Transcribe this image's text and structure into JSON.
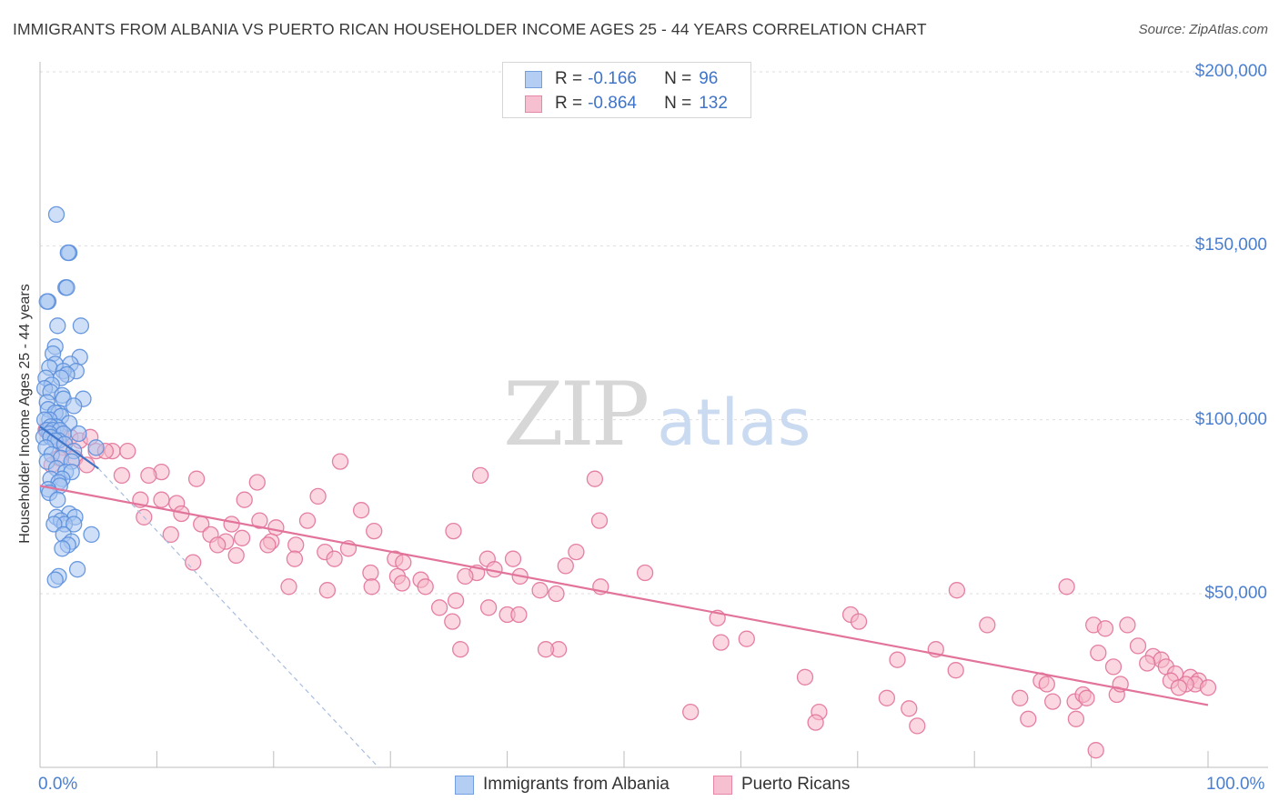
{
  "chart_data": {
    "type": "scatter",
    "title": "IMMIGRANTS FROM ALBANIA VS PUERTO RICAN HOUSEHOLDER INCOME AGES 25 - 44 YEARS CORRELATION CHART",
    "source_label": "Source:",
    "source_name": "ZipAtlas.com",
    "xlabel": "",
    "ylabel": "Householder Income Ages 25 - 44 years",
    "xlim": [
      0,
      100
    ],
    "ylim": [
      0,
      210000
    ],
    "x_tick_labels": [
      "0.0%",
      "100.0%"
    ],
    "y_ticks": [
      {
        "value": 50000,
        "label": "$50,000"
      },
      {
        "value": 100000,
        "label": "$100,000"
      },
      {
        "value": 150000,
        "label": "$150,000"
      },
      {
        "value": 200000,
        "label": "$200,000"
      }
    ],
    "grid": true,
    "watermark": {
      "zip": "ZIP",
      "atlas": "atlas"
    },
    "legend_position": "top-center",
    "series": [
      {
        "name": "Immigrants from Albania",
        "color": "#5b8fdc",
        "fill": "#a7c5f0",
        "R_label": "R =",
        "R": "-0.166",
        "N_label": "N =",
        "N": "96",
        "trend_solid": [
          [
            0,
            98000
          ],
          [
            5,
            86000
          ]
        ],
        "trend_dashed": [
          [
            5,
            86000
          ],
          [
            29,
            0
          ]
        ],
        "points": [
          [
            1.4,
            159000
          ],
          [
            2.5,
            148000
          ],
          [
            2.4,
            148000
          ],
          [
            2.2,
            138000
          ],
          [
            2.3,
            138000
          ],
          [
            0.7,
            134000
          ],
          [
            0.6,
            134000
          ],
          [
            1.5,
            127000
          ],
          [
            3.5,
            127000
          ],
          [
            1.3,
            121000
          ],
          [
            1.1,
            119000
          ],
          [
            3.4,
            118000
          ],
          [
            2.6,
            116000
          ],
          [
            1.3,
            116000
          ],
          [
            0.8,
            115000
          ],
          [
            3.1,
            114000
          ],
          [
            2.0,
            114000
          ],
          [
            2.3,
            113000
          ],
          [
            0.5,
            112000
          ],
          [
            1.8,
            112000
          ],
          [
            1.0,
            110000
          ],
          [
            0.4,
            109000
          ],
          [
            0.9,
            108000
          ],
          [
            1.9,
            107000
          ],
          [
            2.0,
            106000
          ],
          [
            3.7,
            106000
          ],
          [
            0.6,
            105000
          ],
          [
            2.9,
            104000
          ],
          [
            0.7,
            103000
          ],
          [
            1.6,
            102000
          ],
          [
            1.3,
            102000
          ],
          [
            1.8,
            101000
          ],
          [
            0.8,
            100000
          ],
          [
            0.4,
            100000
          ],
          [
            2.5,
            99000
          ],
          [
            1.4,
            98000
          ],
          [
            0.9,
            98000
          ],
          [
            0.6,
            97000
          ],
          [
            1.1,
            97000
          ],
          [
            1.7,
            97000
          ],
          [
            2.0,
            96000
          ],
          [
            3.3,
            96000
          ],
          [
            0.8,
            96000
          ],
          [
            0.3,
            95000
          ],
          [
            0.9,
            95000
          ],
          [
            1.6,
            94000
          ],
          [
            1.3,
            94000
          ],
          [
            2.1,
            93000
          ],
          [
            0.5,
            92000
          ],
          [
            4.8,
            92000
          ],
          [
            2.9,
            91000
          ],
          [
            1.0,
            90000
          ],
          [
            1.8,
            89000
          ],
          [
            2.7,
            88000
          ],
          [
            0.6,
            88000
          ],
          [
            1.4,
            86000
          ],
          [
            2.2,
            85000
          ],
          [
            2.7,
            85000
          ],
          [
            0.9,
            83000
          ],
          [
            1.9,
            83000
          ],
          [
            1.6,
            82000
          ],
          [
            1.7,
            81000
          ],
          [
            0.7,
            80000
          ],
          [
            0.8,
            79000
          ],
          [
            1.5,
            77000
          ],
          [
            2.5,
            73000
          ],
          [
            3.0,
            72000
          ],
          [
            1.4,
            72000
          ],
          [
            1.8,
            71000
          ],
          [
            2.1,
            70000
          ],
          [
            2.9,
            70000
          ],
          [
            1.2,
            70000
          ],
          [
            4.4,
            67000
          ],
          [
            2.0,
            67000
          ],
          [
            2.7,
            65000
          ],
          [
            2.4,
            64000
          ],
          [
            1.9,
            63000
          ],
          [
            3.2,
            57000
          ],
          [
            1.6,
            55000
          ],
          [
            1.3,
            54000
          ]
        ]
      },
      {
        "name": "Puerto Ricans",
        "color": "#e2739a",
        "fill": "#f5b6c9",
        "R_label": "R =",
        "R": "-0.864",
        "N_label": "N =",
        "N": "132",
        "trend_solid": [
          [
            0,
            81000
          ],
          [
            100,
            18000
          ]
        ],
        "points": [
          [
            0.5,
            97000
          ],
          [
            1.2,
            95000
          ],
          [
            1.8,
            96000
          ],
          [
            2.0,
            92000
          ],
          [
            2.6,
            95000
          ],
          [
            3.4,
            94000
          ],
          [
            4.3,
            95000
          ],
          [
            4.8,
            91000
          ],
          [
            6.2,
            91000
          ],
          [
            7.5,
            91000
          ],
          [
            1.6,
            89000
          ],
          [
            3.0,
            89000
          ],
          [
            5.6,
            91000
          ],
          [
            1.0,
            87000
          ],
          [
            4.0,
            87000
          ],
          [
            10.4,
            85000
          ],
          [
            25.7,
            88000
          ],
          [
            7.0,
            84000
          ],
          [
            9.3,
            84000
          ],
          [
            18.6,
            82000
          ],
          [
            37.7,
            84000
          ],
          [
            47.5,
            83000
          ],
          [
            13.4,
            83000
          ],
          [
            8.6,
            77000
          ],
          [
            10.4,
            77000
          ],
          [
            11.7,
            76000
          ],
          [
            17.5,
            77000
          ],
          [
            23.8,
            78000
          ],
          [
            27.5,
            74000
          ],
          [
            12.1,
            73000
          ],
          [
            8.9,
            72000
          ],
          [
            18.8,
            71000
          ],
          [
            13.8,
            70000
          ],
          [
            16.4,
            70000
          ],
          [
            22.9,
            71000
          ],
          [
            20.2,
            69000
          ],
          [
            14.6,
            67000
          ],
          [
            15.9,
            65000
          ],
          [
            19.8,
            65000
          ],
          [
            11.2,
            67000
          ],
          [
            28.6,
            68000
          ],
          [
            35.4,
            68000
          ],
          [
            47.9,
            71000
          ],
          [
            15.2,
            64000
          ],
          [
            17.3,
            66000
          ],
          [
            19.5,
            64000
          ],
          [
            21.9,
            64000
          ],
          [
            24.4,
            62000
          ],
          [
            26.4,
            63000
          ],
          [
            25.2,
            60000
          ],
          [
            30.4,
            60000
          ],
          [
            31.1,
            59000
          ],
          [
            38.3,
            60000
          ],
          [
            40.5,
            60000
          ],
          [
            45.9,
            62000
          ],
          [
            16.8,
            61000
          ],
          [
            13.1,
            59000
          ],
          [
            21.8,
            60000
          ],
          [
            28.3,
            56000
          ],
          [
            30.6,
            55000
          ],
          [
            32.6,
            54000
          ],
          [
            37.4,
            56000
          ],
          [
            36.4,
            55000
          ],
          [
            38.9,
            57000
          ],
          [
            41.1,
            55000
          ],
          [
            45.0,
            58000
          ],
          [
            51.8,
            56000
          ],
          [
            28.4,
            52000
          ],
          [
            31.0,
            53000
          ],
          [
            33.0,
            52000
          ],
          [
            42.8,
            51000
          ],
          [
            48.0,
            52000
          ],
          [
            44.2,
            50000
          ],
          [
            21.3,
            52000
          ],
          [
            24.6,
            51000
          ],
          [
            35.6,
            48000
          ],
          [
            38.4,
            46000
          ],
          [
            34.2,
            46000
          ],
          [
            40.0,
            44000
          ],
          [
            41.0,
            44000
          ],
          [
            58.0,
            43000
          ],
          [
            69.4,
            44000
          ],
          [
            70.1,
            42000
          ],
          [
            81.1,
            41000
          ],
          [
            78.5,
            51000
          ],
          [
            87.9,
            52000
          ],
          [
            90.2,
            41000
          ],
          [
            91.2,
            40000
          ],
          [
            93.1,
            41000
          ],
          [
            35.3,
            42000
          ],
          [
            44.4,
            34000
          ],
          [
            43.3,
            34000
          ],
          [
            36.0,
            34000
          ],
          [
            73.4,
            31000
          ],
          [
            76.7,
            34000
          ],
          [
            90.6,
            33000
          ],
          [
            94.0,
            35000
          ],
          [
            95.3,
            32000
          ],
          [
            96.0,
            31000
          ],
          [
            94.8,
            30000
          ],
          [
            96.4,
            29000
          ],
          [
            97.2,
            27000
          ],
          [
            98.5,
            26000
          ],
          [
            99.2,
            25000
          ],
          [
            91.9,
            29000
          ],
          [
            65.5,
            26000
          ],
          [
            78.4,
            28000
          ],
          [
            85.7,
            25000
          ],
          [
            86.2,
            24000
          ],
          [
            88.6,
            19000
          ],
          [
            89.3,
            21000
          ],
          [
            92.2,
            21000
          ],
          [
            96.8,
            25000
          ],
          [
            98.9,
            24000
          ],
          [
            100.0,
            23000
          ],
          [
            72.5,
            20000
          ],
          [
            74.4,
            17000
          ],
          [
            83.9,
            20000
          ],
          [
            89.6,
            20000
          ],
          [
            92.5,
            24000
          ],
          [
            55.7,
            16000
          ],
          [
            66.7,
            16000
          ],
          [
            66.4,
            13000
          ],
          [
            75.1,
            12000
          ],
          [
            84.6,
            14000
          ],
          [
            86.7,
            19000
          ],
          [
            88.7,
            14000
          ],
          [
            90.4,
            5000
          ],
          [
            98.1,
            24000
          ],
          [
            97.5,
            23000
          ],
          [
            60.5,
            37000
          ],
          [
            58.3,
            36000
          ]
        ]
      }
    ]
  }
}
